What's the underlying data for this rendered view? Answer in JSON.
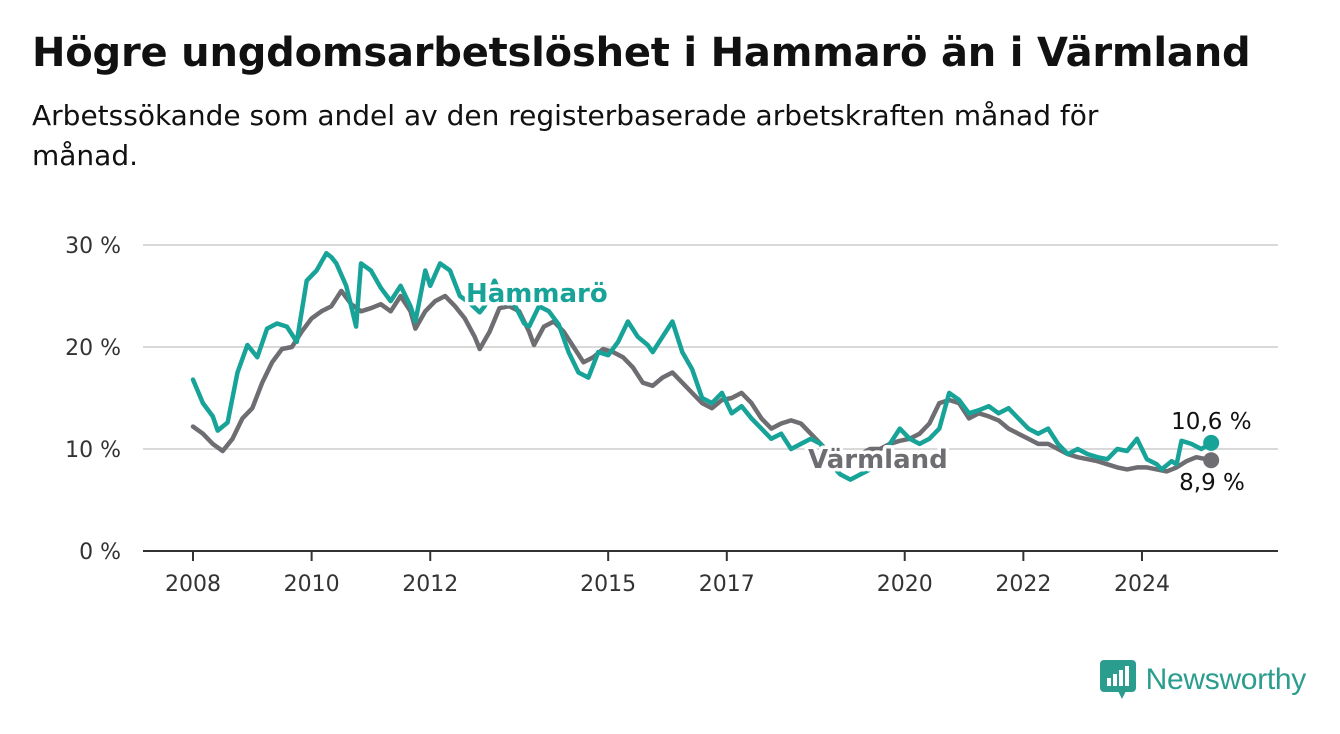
{
  "title": "Högre ungdomsarbetslöshet i Hammarö än i Värmland",
  "subtitle": "Arbetssökande som andel av den registerbaserade arbetskraften månad för månad.",
  "brand": "Newsworthy",
  "colors": {
    "hammaro": "#17a398",
    "varmland": "#6e6e72",
    "grid": "#d9d9d9",
    "axis": "#333333",
    "brand": "#2a9d8f"
  },
  "chart_data": {
    "type": "line",
    "title": "Högre ungdomsarbetslöshet i Hammarö än i Värmland",
    "ylim": [
      0,
      30
    ],
    "yticks": [
      0,
      10,
      20,
      30
    ],
    "ytick_labels": [
      "0 %",
      "10 %",
      "20 %",
      "30 %"
    ],
    "xlim": [
      "2008-01",
      "2025-06"
    ],
    "xticks": [
      2008,
      2010,
      2012,
      2015,
      2017,
      2020,
      2022,
      2024
    ],
    "xtick_labels": [
      "2008",
      "2010",
      "2012",
      "2015",
      "2017",
      "2020",
      "2022",
      "2024"
    ],
    "grid": true,
    "legend": "inline labels",
    "series": [
      {
        "name": "Hammarö",
        "end_label": "10,6 %",
        "points": [
          [
            "2008-01",
            16.8
          ],
          [
            "2008-03",
            14.5
          ],
          [
            "2008-05",
            13.2
          ],
          [
            "2008-06",
            11.8
          ],
          [
            "2008-08",
            12.6
          ],
          [
            "2008-10",
            17.5
          ],
          [
            "2008-12",
            20.2
          ],
          [
            "2009-02",
            19.0
          ],
          [
            "2009-04",
            21.8
          ],
          [
            "2009-06",
            22.3
          ],
          [
            "2009-08",
            22.0
          ],
          [
            "2009-10",
            20.5
          ],
          [
            "2009-12",
            26.5
          ],
          [
            "2010-02",
            27.5
          ],
          [
            "2010-04",
            29.2
          ],
          [
            "2010-05",
            28.8
          ],
          [
            "2010-06",
            28.2
          ],
          [
            "2010-08",
            26.0
          ],
          [
            "2010-09",
            24.0
          ],
          [
            "2010-10",
            22.0
          ],
          [
            "2010-11",
            28.2
          ],
          [
            "2011-01",
            27.5
          ],
          [
            "2011-03",
            25.8
          ],
          [
            "2011-05",
            24.5
          ],
          [
            "2011-07",
            26.0
          ],
          [
            "2011-09",
            24.0
          ],
          [
            "2011-10",
            22.5
          ],
          [
            "2011-12",
            27.5
          ],
          [
            "2012-01",
            26.0
          ],
          [
            "2012-03",
            28.2
          ],
          [
            "2012-05",
            27.5
          ],
          [
            "2012-07",
            25.0
          ],
          [
            "2012-09",
            24.3
          ],
          [
            "2012-11",
            23.4
          ],
          [
            "2012-12",
            24.0
          ],
          [
            "2013-02",
            26.5
          ],
          [
            "2013-04",
            24.3
          ],
          [
            "2013-06",
            24.2
          ],
          [
            "2013-08",
            22.3
          ],
          [
            "2013-09",
            22.0
          ],
          [
            "2013-11",
            24.0
          ],
          [
            "2014-01",
            23.5
          ],
          [
            "2014-03",
            22.2
          ],
          [
            "2014-05",
            19.5
          ],
          [
            "2014-07",
            17.5
          ],
          [
            "2014-09",
            17.0
          ],
          [
            "2014-11",
            19.5
          ],
          [
            "2015-01",
            19.2
          ],
          [
            "2015-03",
            20.5
          ],
          [
            "2015-05",
            22.5
          ],
          [
            "2015-07",
            21.0
          ],
          [
            "2015-09",
            20.2
          ],
          [
            "2015-10",
            19.5
          ],
          [
            "2015-12",
            21.0
          ],
          [
            "2016-02",
            22.5
          ],
          [
            "2016-04",
            19.5
          ],
          [
            "2016-06",
            17.8
          ],
          [
            "2016-08",
            15.0
          ],
          [
            "2016-10",
            14.5
          ],
          [
            "2016-12",
            15.5
          ],
          [
            "2017-02",
            13.5
          ],
          [
            "2017-04",
            14.2
          ],
          [
            "2017-06",
            13.0
          ],
          [
            "2017-08",
            12.0
          ],
          [
            "2017-10",
            11.0
          ],
          [
            "2017-12",
            11.5
          ],
          [
            "2018-02",
            10.0
          ],
          [
            "2018-04",
            10.5
          ],
          [
            "2018-06",
            11.0
          ],
          [
            "2018-08",
            10.5
          ],
          [
            "2018-10",
            8.5
          ],
          [
            "2018-12",
            7.5
          ],
          [
            "2019-02",
            7.0
          ],
          [
            "2019-04",
            7.5
          ],
          [
            "2019-06",
            8.0
          ],
          [
            "2019-08",
            8.5
          ],
          [
            "2019-10",
            10.5
          ],
          [
            "2019-12",
            12.0
          ],
          [
            "2020-02",
            11.0
          ],
          [
            "2020-04",
            10.5
          ],
          [
            "2020-06",
            11.0
          ],
          [
            "2020-08",
            12.0
          ],
          [
            "2020-10",
            15.5
          ],
          [
            "2020-12",
            14.8
          ],
          [
            "2021-02",
            13.5
          ],
          [
            "2021-04",
            13.8
          ],
          [
            "2021-06",
            14.2
          ],
          [
            "2021-08",
            13.5
          ],
          [
            "2021-10",
            14.0
          ],
          [
            "2021-12",
            13.0
          ],
          [
            "2022-02",
            12.0
          ],
          [
            "2022-04",
            11.5
          ],
          [
            "2022-06",
            12.0
          ],
          [
            "2022-08",
            10.5
          ],
          [
            "2022-10",
            9.5
          ],
          [
            "2022-12",
            10.0
          ],
          [
            "2023-02",
            9.5
          ],
          [
            "2023-04",
            9.2
          ],
          [
            "2023-06",
            9.0
          ],
          [
            "2023-08",
            10.0
          ],
          [
            "2023-10",
            9.8
          ],
          [
            "2023-12",
            11.0
          ],
          [
            "2024-02",
            9.0
          ],
          [
            "2024-04",
            8.5
          ],
          [
            "2024-05",
            8.0
          ],
          [
            "2024-07",
            8.8
          ],
          [
            "2024-08",
            8.5
          ],
          [
            "2024-09",
            10.8
          ],
          [
            "2024-11",
            10.5
          ],
          [
            "2025-01",
            10.0
          ],
          [
            "2025-03",
            10.6
          ]
        ]
      },
      {
        "name": "Värmland",
        "end_label": "8,9 %",
        "points": [
          [
            "2008-01",
            12.2
          ],
          [
            "2008-03",
            11.5
          ],
          [
            "2008-05",
            10.5
          ],
          [
            "2008-07",
            9.8
          ],
          [
            "2008-09",
            11.0
          ],
          [
            "2008-11",
            13.0
          ],
          [
            "2009-01",
            14.0
          ],
          [
            "2009-03",
            16.5
          ],
          [
            "2009-05",
            18.5
          ],
          [
            "2009-07",
            19.8
          ],
          [
            "2009-09",
            20.0
          ],
          [
            "2009-11",
            21.5
          ],
          [
            "2010-01",
            22.8
          ],
          [
            "2010-03",
            23.5
          ],
          [
            "2010-05",
            24.0
          ],
          [
            "2010-07",
            25.5
          ],
          [
            "2010-09",
            24.2
          ],
          [
            "2010-11",
            23.5
          ],
          [
            "2011-01",
            23.8
          ],
          [
            "2011-03",
            24.2
          ],
          [
            "2011-05",
            23.5
          ],
          [
            "2011-07",
            25.0
          ],
          [
            "2011-09",
            23.5
          ],
          [
            "2011-10",
            21.8
          ],
          [
            "2011-12",
            23.5
          ],
          [
            "2012-02",
            24.5
          ],
          [
            "2012-04",
            25.0
          ],
          [
            "2012-06",
            24.0
          ],
          [
            "2012-08",
            22.8
          ],
          [
            "2012-10",
            21.0
          ],
          [
            "2012-11",
            19.8
          ],
          [
            "2013-01",
            21.5
          ],
          [
            "2013-03",
            23.8
          ],
          [
            "2013-05",
            24.0
          ],
          [
            "2013-07",
            23.5
          ],
          [
            "2013-09",
            21.5
          ],
          [
            "2013-10",
            20.2
          ],
          [
            "2013-12",
            22.0
          ],
          [
            "2014-02",
            22.5
          ],
          [
            "2014-04",
            21.5
          ],
          [
            "2014-06",
            20.0
          ],
          [
            "2014-08",
            18.5
          ],
          [
            "2014-10",
            19.0
          ],
          [
            "2014-12",
            19.8
          ],
          [
            "2015-02",
            19.5
          ],
          [
            "2015-04",
            19.0
          ],
          [
            "2015-06",
            18.0
          ],
          [
            "2015-08",
            16.5
          ],
          [
            "2015-10",
            16.2
          ],
          [
            "2015-12",
            17.0
          ],
          [
            "2016-02",
            17.5
          ],
          [
            "2016-04",
            16.5
          ],
          [
            "2016-06",
            15.5
          ],
          [
            "2016-08",
            14.5
          ],
          [
            "2016-10",
            14.0
          ],
          [
            "2016-12",
            14.8
          ],
          [
            "2017-02",
            15.0
          ],
          [
            "2017-04",
            15.5
          ],
          [
            "2017-06",
            14.5
          ],
          [
            "2017-08",
            13.0
          ],
          [
            "2017-10",
            12.0
          ],
          [
            "2017-12",
            12.5
          ],
          [
            "2018-02",
            12.8
          ],
          [
            "2018-04",
            12.5
          ],
          [
            "2018-06",
            11.5
          ],
          [
            "2018-08",
            10.5
          ],
          [
            "2018-10",
            9.5
          ],
          [
            "2018-12",
            9.0
          ],
          [
            "2019-02",
            9.0
          ],
          [
            "2019-04",
            9.5
          ],
          [
            "2019-06",
            10.0
          ],
          [
            "2019-08",
            10.0
          ],
          [
            "2019-10",
            10.5
          ],
          [
            "2019-12",
            10.8
          ],
          [
            "2020-02",
            11.0
          ],
          [
            "2020-04",
            11.5
          ],
          [
            "2020-06",
            12.5
          ],
          [
            "2020-08",
            14.5
          ],
          [
            "2020-10",
            14.8
          ],
          [
            "2020-12",
            14.5
          ],
          [
            "2021-02",
            13.0
          ],
          [
            "2021-04",
            13.5
          ],
          [
            "2021-06",
            13.2
          ],
          [
            "2021-08",
            12.8
          ],
          [
            "2021-10",
            12.0
          ],
          [
            "2021-12",
            11.5
          ],
          [
            "2022-02",
            11.0
          ],
          [
            "2022-04",
            10.5
          ],
          [
            "2022-06",
            10.5
          ],
          [
            "2022-08",
            10.0
          ],
          [
            "2022-10",
            9.5
          ],
          [
            "2022-12",
            9.2
          ],
          [
            "2023-02",
            9.0
          ],
          [
            "2023-04",
            8.8
          ],
          [
            "2023-06",
            8.5
          ],
          [
            "2023-08",
            8.2
          ],
          [
            "2023-10",
            8.0
          ],
          [
            "2023-12",
            8.2
          ],
          [
            "2024-02",
            8.2
          ],
          [
            "2024-04",
            8.0
          ],
          [
            "2024-06",
            7.8
          ],
          [
            "2024-08",
            8.2
          ],
          [
            "2024-10",
            8.8
          ],
          [
            "2024-12",
            9.2
          ],
          [
            "2025-03",
            8.9
          ]
        ]
      }
    ]
  }
}
